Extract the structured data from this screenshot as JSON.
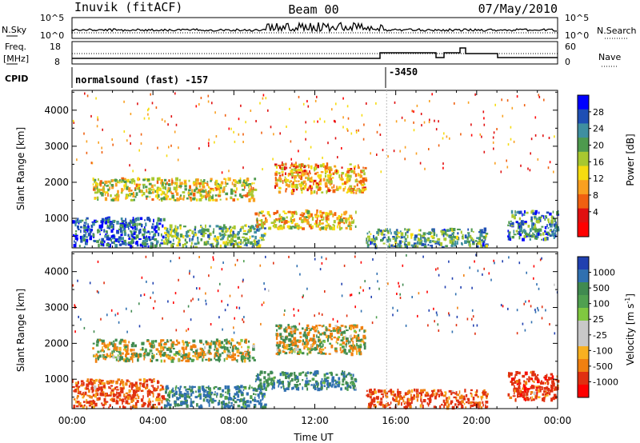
{
  "header": {
    "station": "Inuvik (fitACF)",
    "beam": "Beam 00",
    "date": "07/May/2010"
  },
  "noise_panel": {
    "left_label": "N.Sky",
    "right_label": "N.Search",
    "ticks_left": [
      "10^5",
      "10^0"
    ],
    "ticks_right": [
      "10^5",
      "10^0"
    ]
  },
  "freq_panel": {
    "left_label_1": "Freq.",
    "left_label_2": "[MHz]",
    "right_label": "Nave",
    "ticks_left": [
      "18",
      "8"
    ],
    "ticks_right": [
      "60",
      "0"
    ]
  },
  "cpid": {
    "label": "CPID",
    "first": "normalsound (fast) -157",
    "second": "-3450"
  },
  "power_panel": {
    "ylabel": "Slant Range [km]",
    "yticks": [
      "4000",
      "3000",
      "2000",
      "1000"
    ],
    "colorbar_label": "Power [dB]",
    "colorbar_ticks": [
      "28",
      "24",
      "20",
      "16",
      "12",
      "8",
      "4"
    ],
    "colors": [
      "#0000ff",
      "#1f4fb4",
      "#3f8fa0",
      "#4e9a4e",
      "#a8c830",
      "#f6dc10",
      "#f9a020",
      "#f06010",
      "#e01010",
      "#ff0000"
    ]
  },
  "velocity_panel": {
    "ylabel": "Slant Range [km]",
    "yticks": [
      "4000",
      "3000",
      "2000",
      "1000"
    ],
    "colorbar_label": "Velocity [m s",
    "colorbar_sup": "-1",
    "colorbar_label_end": "]",
    "colorbar_ticks": [
      "1000",
      "500",
      "100",
      "25",
      "-25",
      "-100",
      "-500",
      "-1000"
    ],
    "colors": [
      "#2040b0",
      "#3070b0",
      "#408a50",
      "#50a050",
      "#80c840",
      "#c8c8c8",
      "#c8c8c8",
      "#f8b020",
      "#f08010",
      "#e03010",
      "#ff0000"
    ]
  },
  "xaxis": {
    "label": "Time UT",
    "ticks": [
      "00:00",
      "04:00",
      "08:00",
      "12:00",
      "16:00",
      "20:00",
      "00:00"
    ]
  },
  "chart_data": [
    {
      "type": "heatmap",
      "title": "Power",
      "xlabel": "Time UT",
      "ylabel": "Slant Range [km]",
      "xlim": [
        0,
        24
      ],
      "ylim": [
        180,
        4550
      ],
      "zlabel": "Power [dB]",
      "zlim": [
        0,
        32
      ],
      "bands": [
        {
          "t0": 0.0,
          "t1": 4.5,
          "r0": 200,
          "r1": 1000,
          "p": 26
        },
        {
          "t0": 4.5,
          "t1": 9.5,
          "r0": 200,
          "r1": 800,
          "p": 20
        },
        {
          "t0": 9.0,
          "t1": 14.0,
          "r0": 700,
          "r1": 1200,
          "p": 14
        },
        {
          "t0": 14.5,
          "t1": 20.5,
          "r0": 200,
          "r1": 700,
          "p": 22
        },
        {
          "t0": 1.0,
          "t1": 9.0,
          "r0": 1500,
          "r1": 2100,
          "p": 15
        },
        {
          "t0": 10.0,
          "t1": 14.5,
          "r0": 1700,
          "r1": 2500,
          "p": 12
        },
        {
          "t0": 21.5,
          "t1": 24.0,
          "r0": 400,
          "r1": 1200,
          "p": 24
        }
      ]
    },
    {
      "type": "heatmap",
      "title": "Velocity",
      "xlabel": "Time UT",
      "ylabel": "Slant Range [km]",
      "xlim": [
        0,
        24
      ],
      "ylim": [
        180,
        4550
      ],
      "zlabel": "Velocity [m s-1]",
      "zlim": [
        -1000,
        1000
      ],
      "bands": [
        {
          "t0": 0.0,
          "t1": 4.5,
          "r0": 200,
          "r1": 1000,
          "v": -150
        },
        {
          "t0": 4.5,
          "t1": 9.5,
          "r0": 200,
          "r1": 800,
          "v": 150
        },
        {
          "t0": 9.0,
          "t1": 14.0,
          "r0": 700,
          "r1": 1200,
          "v": 100
        },
        {
          "t0": 14.5,
          "t1": 20.5,
          "r0": 200,
          "r1": 700,
          "v": -200
        },
        {
          "t0": 1.0,
          "t1": 9.0,
          "r0": 1500,
          "r1": 2100,
          "v": 0
        },
        {
          "t0": 10.0,
          "t1": 14.5,
          "r0": 1700,
          "r1": 2500,
          "v": 0
        },
        {
          "t0": 21.5,
          "t1": 24.0,
          "r0": 400,
          "r1": 1200,
          "v": -300
        }
      ]
    }
  ]
}
